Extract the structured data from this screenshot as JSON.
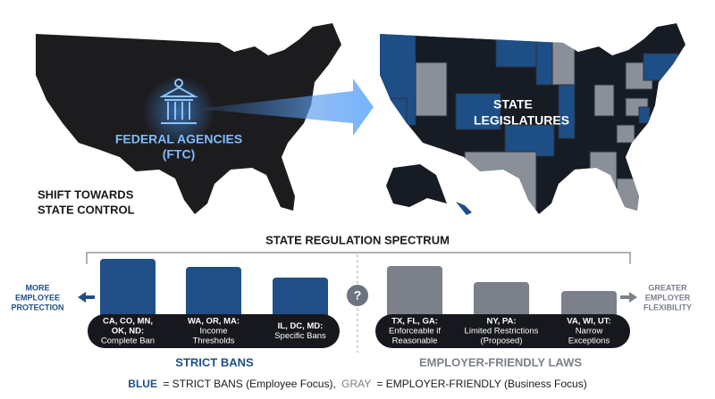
{
  "header": {
    "shift_label": [
      "SHIFT TOWARDS",
      "STATE CONTROL"
    ],
    "federal_label": [
      "FEDERAL AGENCIES",
      "(FTC)"
    ],
    "state_label": [
      "STATE",
      "LEGISLATURES"
    ]
  },
  "spectrum": {
    "title": "STATE REGULATION SPECTRUM",
    "left_label": [
      "MORE",
      "EMPLOYEE",
      "PROTECTION"
    ],
    "right_label": [
      "GREATER",
      "EMPLOYER",
      "FLEXIBILITY"
    ],
    "divider": "?",
    "groups": [
      {
        "title": "STRICT BANS",
        "items": [
          {
            "states": [
              "CA, CO, MN,",
              "OK, ND:"
            ],
            "rule": [
              "Complete Ban"
            ]
          },
          {
            "states": [
              "WA, OR, MA:"
            ],
            "rule": [
              "Income",
              "Thresholds"
            ]
          },
          {
            "states": [
              "IL, DC, MD:"
            ],
            "rule": [
              "Specific Bans"
            ]
          }
        ]
      },
      {
        "title": "EMPLOYER-FRIENDLY LAWS",
        "items": [
          {
            "states": [
              "TX, FL, GA:"
            ],
            "rule": [
              "Enforceable if",
              "Reasonable"
            ]
          },
          {
            "states": [
              "NY, PA:"
            ],
            "rule": [
              "Limited Restrictions",
              "(Proposed)"
            ]
          },
          {
            "states": [
              "VA, WI, UT:"
            ],
            "rule": [
              "Narrow",
              "Exceptions"
            ]
          }
        ]
      }
    ]
  },
  "legend": {
    "blue": "BLUE",
    "blue_text": "= STRICT BANS (Employee Focus),",
    "gray": "GRAY",
    "gray_text": "= EMPLOYER-FRIENDLY (Business Focus)"
  }
}
